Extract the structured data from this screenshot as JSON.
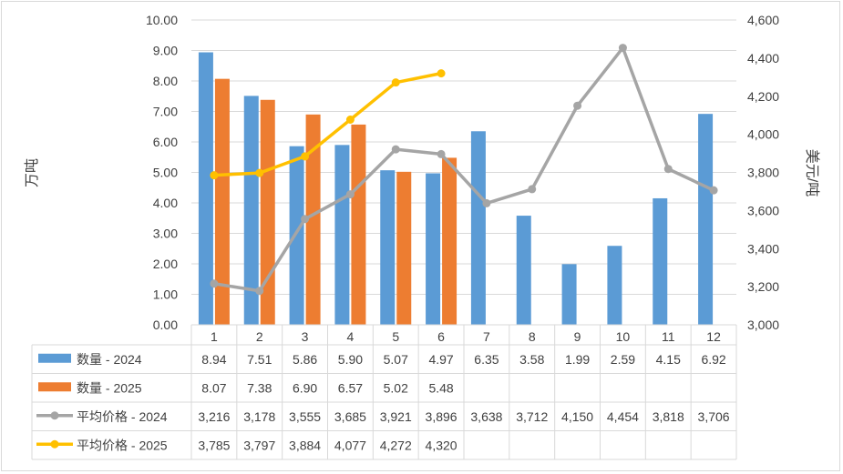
{
  "chart_data": {
    "type": "bar",
    "categories": [
      "1",
      "2",
      "3",
      "4",
      "5",
      "6",
      "7",
      "8",
      "9",
      "10",
      "11",
      "12"
    ],
    "series": [
      {
        "name": "数量 - 2024",
        "kind": "bar",
        "axis": "left",
        "color": "#5b9bd5",
        "values": [
          8.94,
          7.51,
          5.86,
          5.9,
          5.07,
          4.97,
          6.35,
          3.58,
          1.99,
          2.59,
          4.15,
          6.92
        ],
        "labels": [
          "8.94",
          "7.51",
          "5.86",
          "5.90",
          "5.07",
          "4.97",
          "6.35",
          "3.58",
          "1.99",
          "2.59",
          "4.15",
          "6.92"
        ]
      },
      {
        "name": "数量 - 2025",
        "kind": "bar",
        "axis": "left",
        "color": "#ed7d31",
        "values": [
          8.07,
          7.38,
          6.9,
          6.57,
          5.02,
          5.48,
          null,
          null,
          null,
          null,
          null,
          null
        ],
        "labels": [
          "8.07",
          "7.38",
          "6.90",
          "6.57",
          "5.02",
          "5.48",
          "",
          "",
          "",
          "",
          "",
          ""
        ]
      },
      {
        "name": "平均价格 - 2024",
        "kind": "line",
        "axis": "right",
        "color": "#a5a5a5",
        "values": [
          3216,
          3178,
          3555,
          3685,
          3921,
          3896,
          3638,
          3712,
          4150,
          4454,
          3818,
          3706
        ],
        "labels": [
          "3,216",
          "3,178",
          "3,555",
          "3,685",
          "3,921",
          "3,896",
          "3,638",
          "3,712",
          "4,150",
          "4,454",
          "3,818",
          "3,706"
        ]
      },
      {
        "name": "平均价格 - 2025",
        "kind": "line",
        "axis": "right",
        "color": "#ffc000",
        "values": [
          3785,
          3797,
          3884,
          4077,
          4272,
          4320,
          null,
          null,
          null,
          null,
          null,
          null
        ],
        "labels": [
          "3,785",
          "3,797",
          "3,884",
          "4,077",
          "4,272",
          "4,320",
          "",
          "",
          "",
          "",
          "",
          ""
        ]
      }
    ],
    "ylabel": "万吨",
    "y2label": "美元/吨",
    "ylim": [
      0,
      10
    ],
    "y2lim": [
      3000,
      4600
    ],
    "yticks": [
      "0.00",
      "1.00",
      "2.00",
      "3.00",
      "4.00",
      "5.00",
      "6.00",
      "7.00",
      "8.00",
      "9.00",
      "10.00"
    ],
    "y2ticks": [
      "3,000",
      "3,200",
      "3,400",
      "3,600",
      "3,800",
      "4,000",
      "4,200",
      "4,400",
      "4,600"
    ],
    "grid": true,
    "legend": "data-table-below"
  }
}
